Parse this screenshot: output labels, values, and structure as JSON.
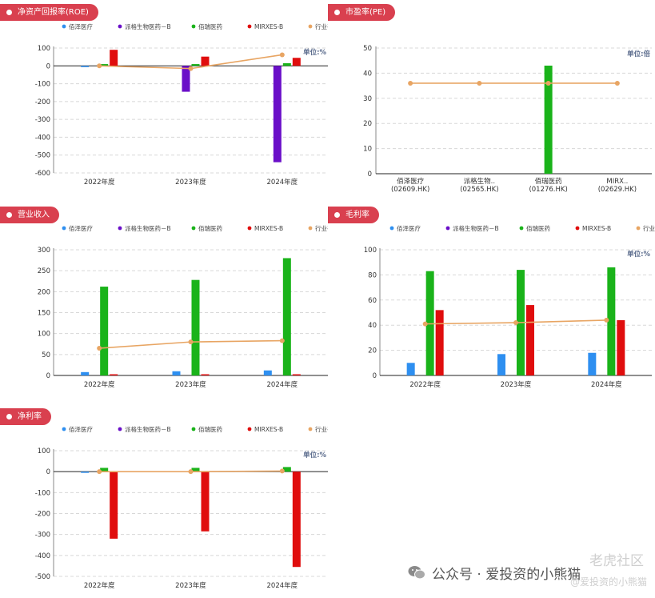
{
  "legend": {
    "items": [
      {
        "name": "佰泽医疗",
        "color": "#2e8ff0"
      },
      {
        "name": "派格生物医药－B",
        "color": "#6a0fc8"
      },
      {
        "name": "佰瑞医药",
        "color": "#1ab31a"
      },
      {
        "name": "MIRXES-B",
        "color": "#e00d0d"
      },
      {
        "name": "行业平均",
        "color": "#e8a563"
      }
    ]
  },
  "footer": {
    "text": "公众号 · 爱投资的小熊猫",
    "watermark": "老虎社区",
    "watermark_sub": "@爱投资的小熊猫"
  },
  "chart_data": [
    {
      "id": "roe",
      "title": "净资产回报率(ROE)",
      "type": "bar",
      "unit_label": "单位:%",
      "categories": [
        "2022年度",
        "2023年度",
        "2024年度"
      ],
      "ylim": [
        -600,
        100
      ],
      "yticks": [
        100,
        0,
        -100,
        -200,
        -300,
        -400,
        -500,
        -600
      ],
      "series": [
        {
          "name": "佰泽医疗",
          "values": [
            -3,
            null,
            null
          ]
        },
        {
          "name": "派格生物医药－B",
          "values": [
            null,
            -145,
            -540
          ]
        },
        {
          "name": "佰瑞医药",
          "values": [
            10,
            10,
            15
          ]
        },
        {
          "name": "MIRXES-B",
          "values": [
            90,
            52,
            45
          ]
        },
        {
          "name": "行业平均",
          "type": "line",
          "values": [
            0,
            -15,
            62
          ]
        }
      ],
      "grid": true
    },
    {
      "id": "pe",
      "title": "市盈率(PE)",
      "type": "bar",
      "unit_label": "单位:倍",
      "categories": [
        "佰泽医疗\n(02609.HK)",
        "派格生物..\n(02565.HK)",
        "佰瑞医药\n(01276.HK)",
        "MIRX..\n(02629.HK)"
      ],
      "ylim": [
        0,
        50
      ],
      "yticks": [
        50,
        40,
        30,
        20,
        10,
        0
      ],
      "values": [
        null,
        null,
        43,
        null
      ],
      "line": {
        "name": "行业平均",
        "values": [
          36,
          36,
          36,
          36
        ]
      },
      "grid": true
    },
    {
      "id": "revenue",
      "title": "营业收入",
      "type": "bar",
      "unit_label": "",
      "categories": [
        "2022年度",
        "2023年度",
        "2024年度"
      ],
      "ylim": [
        0,
        300
      ],
      "yticks": [
        300,
        250,
        200,
        150,
        100,
        50,
        0
      ],
      "series": [
        {
          "name": "佰泽医疗",
          "values": [
            8,
            10,
            12
          ]
        },
        {
          "name": "派格生物医药－B",
          "values": [
            0,
            0,
            0
          ]
        },
        {
          "name": "佰瑞医药",
          "values": [
            212,
            228,
            280
          ]
        },
        {
          "name": "MIRXES-B",
          "values": [
            1,
            1,
            1
          ]
        },
        {
          "name": "行业平均",
          "type": "line",
          "values": [
            65,
            80,
            83
          ]
        }
      ],
      "grid": true
    },
    {
      "id": "gross",
      "title": "毛利率",
      "type": "bar",
      "unit_label": "单位:%",
      "categories": [
        "2022年度",
        "2023年度",
        "2024年度"
      ],
      "ylim": [
        0,
        100
      ],
      "yticks": [
        100,
        80,
        60,
        40,
        20,
        0
      ],
      "series": [
        {
          "name": "佰泽医疗",
          "values": [
            10,
            17,
            18
          ]
        },
        {
          "name": "派格生物医药－B",
          "values": [
            null,
            null,
            null
          ]
        },
        {
          "name": "佰瑞医药",
          "values": [
            83,
            84,
            86
          ]
        },
        {
          "name": "MIRXES-B",
          "values": [
            52,
            56,
            44
          ]
        },
        {
          "name": "行业平均",
          "type": "line",
          "values": [
            41,
            42,
            44
          ]
        }
      ],
      "grid": true
    },
    {
      "id": "netmargin",
      "title": "净利率",
      "type": "bar",
      "unit_label": "单位:%",
      "categories": [
        "2022年度",
        "2023年度",
        "2024年度"
      ],
      "ylim": [
        -500,
        100
      ],
      "yticks": [
        100,
        0,
        -100,
        -200,
        -300,
        -400,
        -500
      ],
      "series": [
        {
          "name": "佰泽医疗",
          "values": [
            -5,
            null,
            null
          ]
        },
        {
          "name": "派格生物医药－B",
          "values": [
            null,
            null,
            null
          ]
        },
        {
          "name": "佰瑞医药",
          "values": [
            18,
            18,
            22
          ]
        },
        {
          "name": "MIRXES-B",
          "values": [
            -320,
            -285,
            -455
          ]
        },
        {
          "name": "行业平均",
          "type": "line",
          "values": [
            0,
            0,
            3
          ]
        }
      ],
      "grid": true
    }
  ]
}
